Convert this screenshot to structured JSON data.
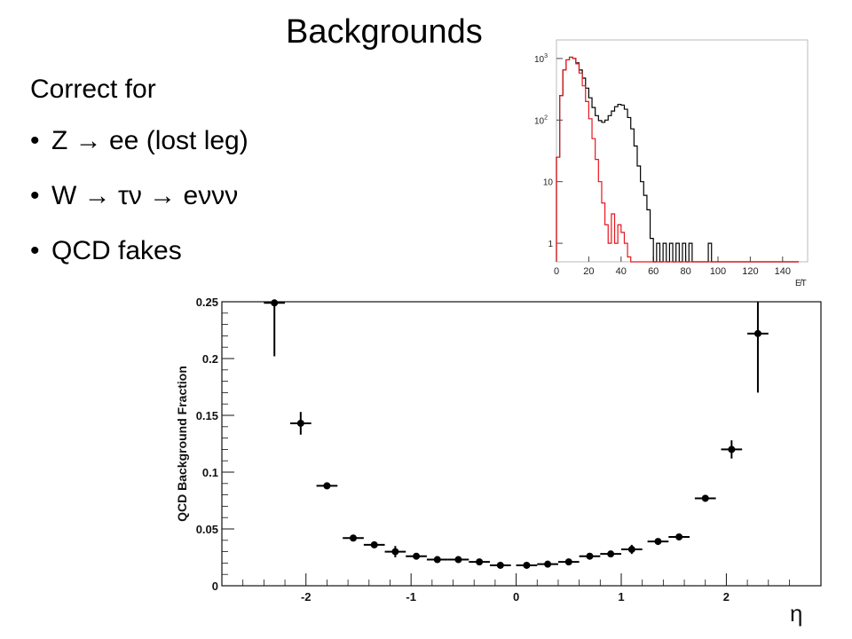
{
  "slide": {
    "title": "Backgrounds",
    "subtitle": "Correct for",
    "bullets": [
      "Z → ee (lost leg)",
      "W → τν → eννν",
      "QCD fakes"
    ],
    "bullet_symbol": "•"
  },
  "colors": {
    "total_line": "#000000",
    "background_line": "#e8141c",
    "markers": "#000000"
  },
  "chart_data": [
    {
      "type": "line",
      "title": "",
      "xlabel": "E̸T",
      "ylabel": "",
      "xlim": [
        0,
        150
      ],
      "ylim": [
        0.5,
        2000
      ],
      "yscale": "log",
      "grid": false,
      "x_ticks": [
        "0",
        "20",
        "40",
        "60",
        "80",
        "100",
        "120",
        "140"
      ],
      "y_ticks": [
        {
          "value": 1,
          "label": "1"
        },
        {
          "value": 10,
          "label": "10"
        },
        {
          "value": 100,
          "label": "10",
          "exp": "2"
        },
        {
          "value": 1000,
          "label": "10",
          "exp": "3"
        }
      ],
      "series": [
        {
          "style": "black",
          "x": [
            0,
            2,
            4,
            6,
            8,
            10,
            12,
            14,
            16,
            18,
            20,
            22,
            24,
            26,
            28,
            30,
            32,
            34,
            36,
            38,
            40,
            42,
            44,
            46,
            48,
            50,
            52,
            54,
            56,
            58,
            60,
            62,
            64,
            66,
            68,
            70,
            72,
            74,
            76,
            78,
            80,
            82,
            84,
            86,
            88,
            90,
            92,
            94,
            96,
            150
          ],
          "y": [
            25,
            250,
            650,
            950,
            1050,
            1000,
            850,
            650,
            480,
            330,
            230,
            160,
            118,
            98,
            92,
            100,
            118,
            140,
            165,
            180,
            175,
            150,
            110,
            72,
            38,
            18,
            10,
            6,
            3.5,
            1.2,
            0.5,
            1,
            0.5,
            1,
            0.5,
            1,
            0.5,
            1,
            0.5,
            1,
            0.5,
            1,
            0.5,
            0.5,
            0.5,
            0.5,
            0.5,
            1,
            0.5,
            0.5
          ]
        },
        {
          "style": "red",
          "x": [
            0,
            2,
            4,
            6,
            8,
            10,
            12,
            14,
            16,
            18,
            20,
            22,
            24,
            26,
            28,
            30,
            32,
            34,
            36,
            38,
            40,
            42,
            44,
            46,
            48,
            150
          ],
          "y": [
            25,
            250,
            650,
            950,
            1050,
            1000,
            820,
            580,
            360,
            200,
            105,
            50,
            23,
            10,
            4.5,
            2,
            1,
            3,
            1,
            2,
            1.5,
            1,
            0.6,
            0.5,
            0.5,
            0.5
          ]
        }
      ]
    },
    {
      "type": "scatter",
      "title": "",
      "xlabel": "η",
      "ylabel": "QCD Background Fraction",
      "xlim": [
        -2.8,
        2.9
      ],
      "ylim": [
        0,
        0.25
      ],
      "grid": false,
      "x_ticks": [
        "-2",
        "-1",
        "0",
        "1",
        "2"
      ],
      "y_ticks": [
        "0",
        "0.05",
        "0.1",
        "0.15",
        "0.2",
        "0.25"
      ],
      "x_half_width": 0.1,
      "points": [
        {
          "x": -2.3,
          "y": 0.249,
          "err_low": 0.047,
          "err_high": 0.0
        },
        {
          "x": -2.05,
          "y": 0.143,
          "err_low": 0.01,
          "err_high": 0.01
        },
        {
          "x": -1.8,
          "y": 0.088,
          "err_low": 0.003,
          "err_high": 0.003
        },
        {
          "x": -1.55,
          "y": 0.042,
          "err_low": 0.001,
          "err_high": 0.001
        },
        {
          "x": -1.35,
          "y": 0.036,
          "err_low": 0.002,
          "err_high": 0.002
        },
        {
          "x": -1.15,
          "y": 0.03,
          "err_low": 0.005,
          "err_high": 0.005
        },
        {
          "x": -0.95,
          "y": 0.026,
          "err_low": 0.002,
          "err_high": 0.002
        },
        {
          "x": -0.75,
          "y": 0.023,
          "err_low": 0.001,
          "err_high": 0.001
        },
        {
          "x": -0.55,
          "y": 0.023,
          "err_low": 0.001,
          "err_high": 0.001
        },
        {
          "x": -0.35,
          "y": 0.021,
          "err_low": 0.001,
          "err_high": 0.001
        },
        {
          "x": -0.15,
          "y": 0.018,
          "err_low": 0.001,
          "err_high": 0.001
        },
        {
          "x": 0.1,
          "y": 0.018,
          "err_low": 0.001,
          "err_high": 0.001
        },
        {
          "x": 0.3,
          "y": 0.019,
          "err_low": 0.001,
          "err_high": 0.001
        },
        {
          "x": 0.5,
          "y": 0.021,
          "err_low": 0.001,
          "err_high": 0.001
        },
        {
          "x": 0.7,
          "y": 0.026,
          "err_low": 0.002,
          "err_high": 0.002
        },
        {
          "x": 0.9,
          "y": 0.028,
          "err_low": 0.002,
          "err_high": 0.002
        },
        {
          "x": 1.1,
          "y": 0.032,
          "err_low": 0.004,
          "err_high": 0.004
        },
        {
          "x": 1.35,
          "y": 0.039,
          "err_low": 0.001,
          "err_high": 0.001
        },
        {
          "x": 1.55,
          "y": 0.043,
          "err_low": 0.001,
          "err_high": 0.001
        },
        {
          "x": 1.8,
          "y": 0.077,
          "err_low": 0.003,
          "err_high": 0.003
        },
        {
          "x": 2.05,
          "y": 0.12,
          "err_low": 0.008,
          "err_high": 0.008
        },
        {
          "x": 2.3,
          "y": 0.222,
          "err_low": 0.052,
          "err_high": 0.03
        }
      ]
    }
  ]
}
